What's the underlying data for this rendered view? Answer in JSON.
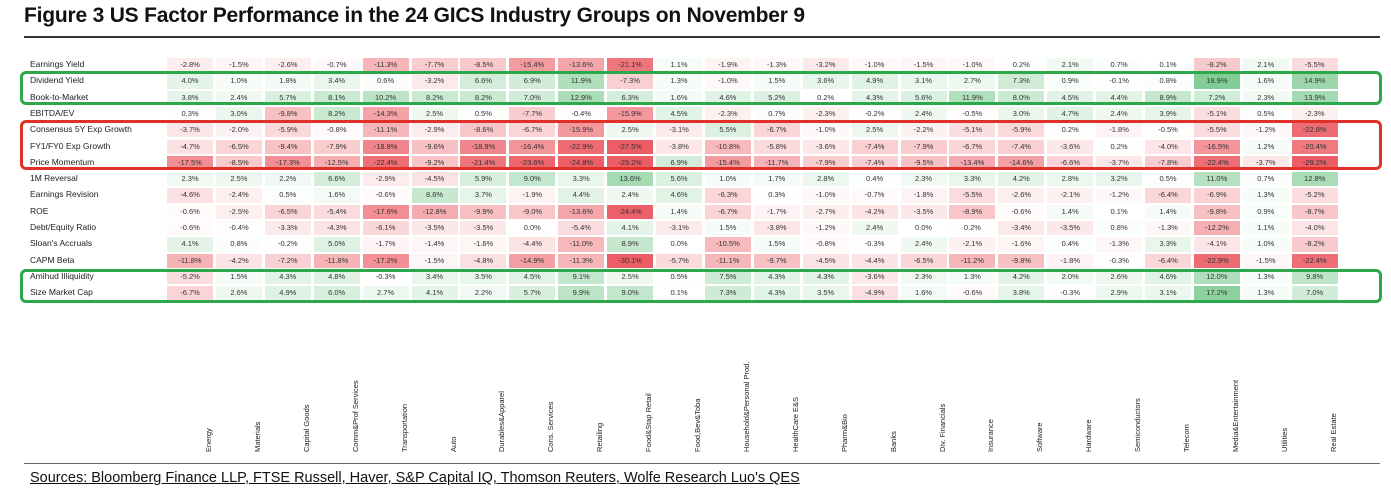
{
  "title": "Figure 3 US Factor Performance in the 24 GICS Industry Groups on November 9",
  "sources": "Sources: Bloomberg Finance LLP, FTSE Russell, Haver, S&P Capital IQ, Thomson Reuters, Wolfe Research Luo's QES",
  "colors": {
    "positive": "#3cb05a",
    "negative": "#e8414a",
    "green_box": "#2aa84a",
    "red_box": "#e0302a"
  },
  "highlight_groups": {
    "green": [
      [
        "Dividend Yield",
        "Book-to-Market"
      ],
      [
        "Amihud Illiquidity",
        "Size Market Cap"
      ]
    ],
    "red": [
      [
        "Consensus 5Y Exp Growth",
        "FY1/FY0 Exp Growth",
        "Price Momentum"
      ]
    ]
  },
  "chart_data": {
    "type": "heatmap",
    "columns": [
      "Energy",
      "Materials",
      "Capital Goods",
      "Comm&Prof Services",
      "Transportation",
      "Auto",
      "Durables&Apparel",
      "Cons. Services",
      "Retailing",
      "Food&Stap Retail",
      "Food,Bev&Toba",
      "Household&Personal Prod.",
      "HealthCare E&S",
      "Pharm&Bio",
      "Banks",
      "Div. Financials",
      "Insurance",
      "Software",
      "Hardware",
      "Semiconductors",
      "Telecom",
      "Media&Entertainment",
      "Utilities",
      "Real Estate"
    ],
    "rows": [
      {
        "name": "Earnings Yield",
        "values": [
          "-2.8%",
          "-1.5%",
          "-2.6%",
          "-0.7%",
          "-11.3%",
          "-7.7%",
          "-8.5%",
          "-15.4%",
          "-13.6%",
          "-21.1%",
          "1.1%",
          "-1.9%",
          "-1.3%",
          "-3.2%",
          "-1.0%",
          "-1.5%",
          "-1.0%",
          "0.2%",
          "2.1%",
          "0.7%",
          "0.1%",
          "-8.2%",
          "2.1%",
          "-5.5%"
        ]
      },
      {
        "name": "Dividend Yield",
        "values": [
          "4.0%",
          "1.0%",
          "1.8%",
          "3.4%",
          "0.6%",
          "-3.2%",
          "6.6%",
          "6.9%",
          "11.9%",
          "-7.3%",
          "1.3%",
          "-1.0%",
          "1.5%",
          "3.6%",
          "4.9%",
          "3.1%",
          "2.7%",
          "7.3%",
          "0.9%",
          "-0.1%",
          "0.8%",
          "18.9%",
          "1.6%",
          "14.9%"
        ]
      },
      {
        "name": "Book-to-Market",
        "values": [
          "3.8%",
          "2.4%",
          "5.7%",
          "8.1%",
          "10.2%",
          "8.2%",
          "8.2%",
          "7.0%",
          "12.9%",
          "6.3%",
          "1.6%",
          "4.6%",
          "5.2%",
          "0.2%",
          "4.3%",
          "5.6%",
          "11.9%",
          "8.0%",
          "4.5%",
          "4.4%",
          "8.9%",
          "7.2%",
          "2.3%",
          "13.9%"
        ]
      },
      {
        "name": "EBITDA/EV",
        "values": [
          "0.3%",
          "3.0%",
          "-9.8%",
          "8.2%",
          "-14.3%",
          "2.5%",
          "0.5%",
          "-7.7%",
          "-0.4%",
          "-15.9%",
          "4.5%",
          "-2.3%",
          "0.7%",
          "-2.3%",
          "-0.2%",
          "2.4%",
          "-0.5%",
          "3.0%",
          "4.7%",
          "2.4%",
          "3.9%",
          "-5.1%",
          "0.5%",
          "-2.3%"
        ]
      },
      {
        "name": "Consensus 5Y Exp Growth",
        "values": [
          "-3.7%",
          "-2.0%",
          "-5.9%",
          "-0.8%",
          "-11.1%",
          "-2.9%",
          "-8.6%",
          "-6.7%",
          "-15.9%",
          "2.5%",
          "-3.1%",
          "5.5%",
          "-6.7%",
          "-1.0%",
          "2.5%",
          "-2.2%",
          "-5.1%",
          "-5.9%",
          "0.2%",
          "-1.8%",
          "-0.5%",
          "-5.5%",
          "-1.2%",
          "-22.8%"
        ]
      },
      {
        "name": "FY1/FY0 Exp Growth",
        "values": [
          "-4.7%",
          "-6.5%",
          "-9.4%",
          "-7.9%",
          "-18.8%",
          "-9.6%",
          "-18.9%",
          "-16.4%",
          "-22.9%",
          "-27.5%",
          "-3.8%",
          "-10.8%",
          "-5.8%",
          "-3.6%",
          "-7.4%",
          "-7.9%",
          "-6.7%",
          "-7.4%",
          "-3.6%",
          "0.2%",
          "-4.0%",
          "-16.5%",
          "1.2%",
          "-20.4%"
        ]
      },
      {
        "name": "Price Momentum",
        "values": [
          "-17.5%",
          "-8.5%",
          "-17.3%",
          "-12.5%",
          "-22.4%",
          "-9.2%",
          "-21.4%",
          "-23.6%",
          "-24.8%",
          "-29.2%",
          "6.9%",
          "-15.4%",
          "-11.7%",
          "-7.9%",
          "-7.4%",
          "-9.5%",
          "-13.4%",
          "-14.6%",
          "-6.6%",
          "-3.7%",
          "-7.8%",
          "-22.4%",
          "-3.7%",
          "-29.2%"
        ]
      },
      {
        "name": "1M Reversal",
        "values": [
          "2.3%",
          "2.5%",
          "2.2%",
          "6.6%",
          "-2.9%",
          "-4.5%",
          "5.9%",
          "9.0%",
          "3.3%",
          "13.6%",
          "5.6%",
          "1.0%",
          "1.7%",
          "2.8%",
          "0.4%",
          "2.3%",
          "3.3%",
          "4.2%",
          "2.8%",
          "3.2%",
          "0.5%",
          "11.0%",
          "0.7%",
          "12.8%"
        ]
      },
      {
        "name": "Earnings Revision",
        "values": [
          "-4.6%",
          "-2.4%",
          "0.5%",
          "1.6%",
          "-0.6%",
          "8.6%",
          "3.7%",
          "-1.9%",
          "4.4%",
          "2.4%",
          "4.6%",
          "-6.3%",
          "0.3%",
          "-1.0%",
          "-0.7%",
          "-1.8%",
          "-5.5%",
          "-2.6%",
          "-2.1%",
          "-1.2%",
          "-6.4%",
          "-6.9%",
          "1.3%",
          "-5.2%"
        ]
      },
      {
        "name": "ROE",
        "values": [
          "-0.6%",
          "-2.5%",
          "-6.5%",
          "-5.4%",
          "-17.6%",
          "-12.8%",
          "-9.9%",
          "-9.0%",
          "-13.6%",
          "-24.4%",
          "1.4%",
          "-6.7%",
          "-1.7%",
          "-2.7%",
          "-4.2%",
          "-3.5%",
          "-8.9%",
          "-0.6%",
          "1.4%",
          "0.1%",
          "1.4%",
          "-9.8%",
          "0.9%",
          "-8.7%"
        ]
      },
      {
        "name": "Debt/Equity Ratio",
        "values": [
          "-0.6%",
          "-0.4%",
          "-3.3%",
          "-4.3%",
          "-6.1%",
          "-3.5%",
          "-3.5%",
          "0.0%",
          "-5.4%",
          "4.1%",
          "-3.1%",
          "1.5%",
          "-3.8%",
          "-1.2%",
          "2.4%",
          "0.0%",
          "0.2%",
          "-3.4%",
          "-3.5%",
          "0.8%",
          "-1.3%",
          "-12.2%",
          "1.1%",
          "-4.0%"
        ]
      },
      {
        "name": "Sloan's Accruals",
        "values": [
          "4.1%",
          "0.8%",
          "-0.2%",
          "5.0%",
          "-1.7%",
          "-1.4%",
          "-1.6%",
          "-4.4%",
          "-11.0%",
          "8.9%",
          "0.0%",
          "-10.5%",
          "1.5%",
          "-0.8%",
          "-0.3%",
          "2.4%",
          "-2.1%",
          "-1.6%",
          "0.4%",
          "-1.3%",
          "3.3%",
          "-4.1%",
          "1.0%",
          "-8.2%"
        ]
      },
      {
        "name": "CAPM Beta",
        "values": [
          "-11.8%",
          "-4.2%",
          "-7.2%",
          "-11.8%",
          "-17.2%",
          "-1.5%",
          "-4.8%",
          "-14.9%",
          "-11.3%",
          "-30.1%",
          "-5.7%",
          "-11.1%",
          "-9.7%",
          "-4.5%",
          "-4.4%",
          "-6.5%",
          "-11.2%",
          "-9.8%",
          "-1.8%",
          "-0.3%",
          "-6.4%",
          "-22.9%",
          "-1.5%",
          "-22.4%"
        ]
      },
      {
        "name": "Amihud Illiquidity",
        "values": [
          "-5.2%",
          "1.5%",
          "4.3%",
          "4.8%",
          "-0.3%",
          "3.4%",
          "3.5%",
          "4.5%",
          "9.1%",
          "2.5%",
          "0.5%",
          "7.5%",
          "4.3%",
          "4.3%",
          "-3.6%",
          "2.3%",
          "1.3%",
          "4.2%",
          "2.0%",
          "2.6%",
          "4.6%",
          "12.0%",
          "1.3%",
          "9.8%"
        ]
      },
      {
        "name": "Size Market Cap",
        "values": [
          "-6.7%",
          "2.6%",
          "4.9%",
          "6.0%",
          "2.7%",
          "4.1%",
          "2.2%",
          "5.7%",
          "9.9%",
          "9.0%",
          "0.1%",
          "7.3%",
          "4.3%",
          "3.5%",
          "-4.9%",
          "1.6%",
          "-0.6%",
          "3.8%",
          "-0.3%",
          "2.9%",
          "3.1%",
          "17.2%",
          "1.3%",
          "7.0%"
        ]
      }
    ]
  }
}
